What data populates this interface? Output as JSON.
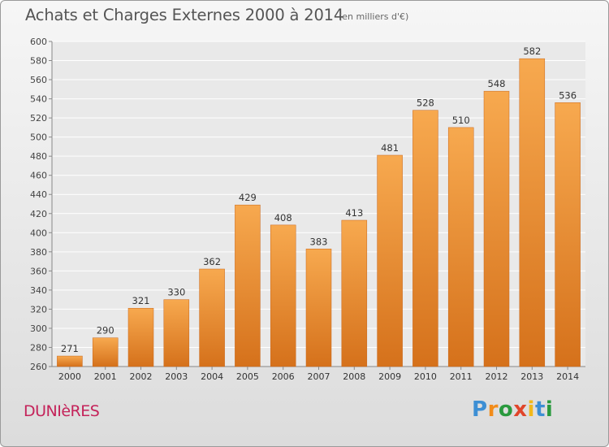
{
  "header": {
    "title": "Achats et Charges Externes 2000 à 2014",
    "subtitle": "(en milliers d'€)"
  },
  "footer": {
    "commune": "DUNIèRES",
    "logo_text": "Proxiti"
  },
  "colors": {
    "bar_top": "#f7a94f",
    "bar_bottom": "#d5711b",
    "commune_text": "#c4235a"
  },
  "chart_data": {
    "type": "bar",
    "categories": [
      "2000",
      "2001",
      "2002",
      "2003",
      "2004",
      "2005",
      "2006",
      "2007",
      "2008",
      "2009",
      "2010",
      "2011",
      "2012",
      "2013",
      "2014"
    ],
    "values": [
      271,
      290,
      321,
      330,
      362,
      429,
      408,
      383,
      413,
      481,
      528,
      510,
      548,
      582,
      536
    ],
    "title": "Achats et Charges Externes 2000 à 2014",
    "ylim": [
      260,
      600
    ],
    "ytick_step": 20,
    "grid": true,
    "data_labels": true
  }
}
